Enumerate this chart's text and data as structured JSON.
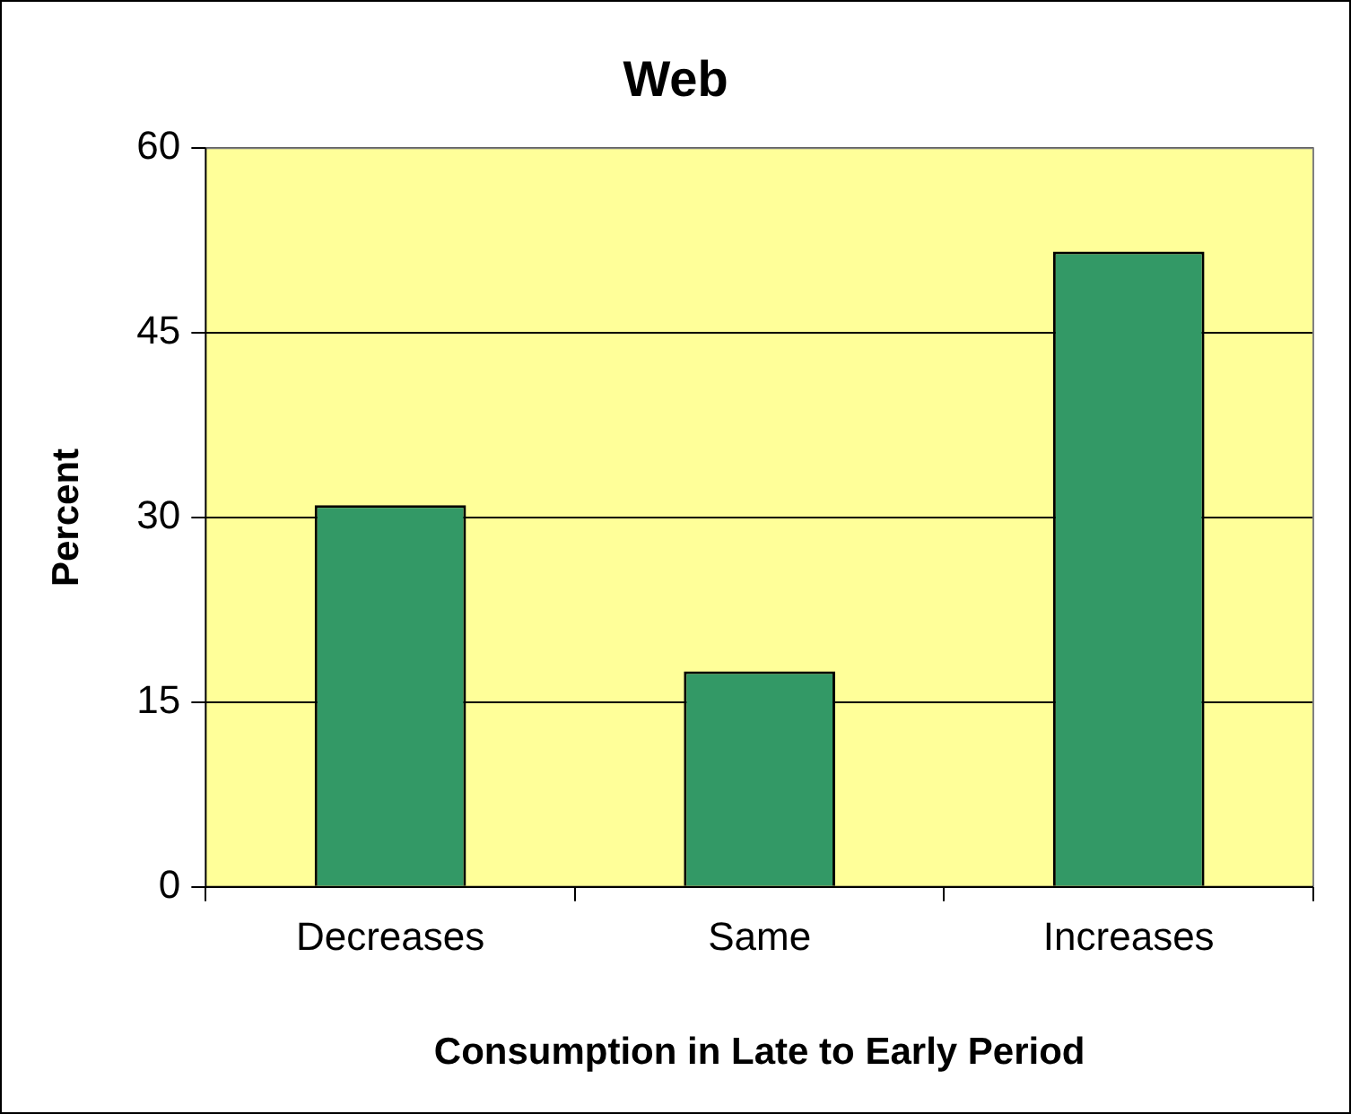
{
  "chart_data": {
    "type": "bar",
    "title": "Web",
    "xlabel": "Consumption in Late to Early Period",
    "ylabel": "Percent",
    "categories": [
      "Decreases",
      "Same",
      "Increases"
    ],
    "values": [
      31,
      17.5,
      51.6
    ],
    "color": "#339966",
    "ylim": [
      0,
      60
    ],
    "yticks": [
      0,
      15,
      30,
      45,
      60
    ],
    "grid": "y",
    "legend": false
  }
}
